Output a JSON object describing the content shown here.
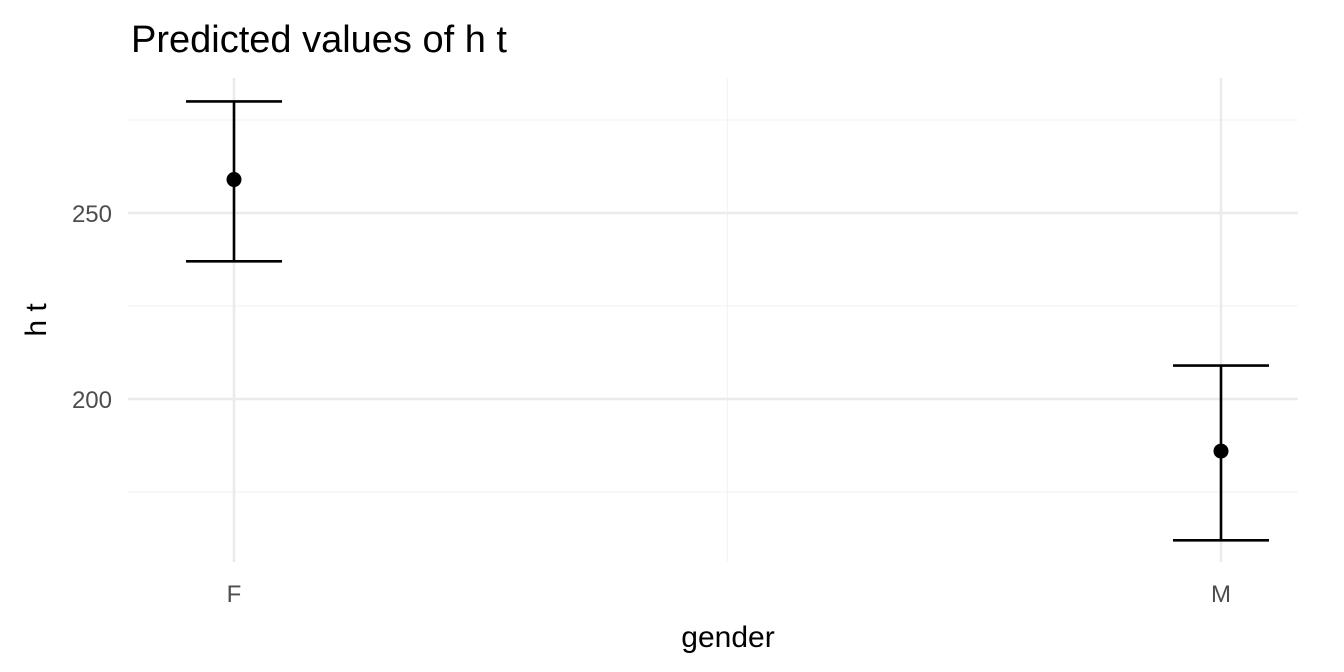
{
  "chart_data": {
    "type": "errorbar",
    "title": "Predicted values of h t",
    "xlabel": "gender",
    "ylabel": "h t",
    "categories": [
      "F",
      "M"
    ],
    "estimates": [
      {
        "x": "F",
        "predicted": 259,
        "conf_low": 237,
        "conf_high": 280
      },
      {
        "x": "M",
        "predicted": 186,
        "conf_low": 162,
        "conf_high": 209
      }
    ],
    "y_ticks": [
      200,
      250
    ],
    "y_minor_ticks": [
      175,
      225,
      275
    ],
    "ylim": [
      156,
      286
    ],
    "grid": true,
    "point_color": "#000000",
    "grid_color": "#ebebeb"
  }
}
